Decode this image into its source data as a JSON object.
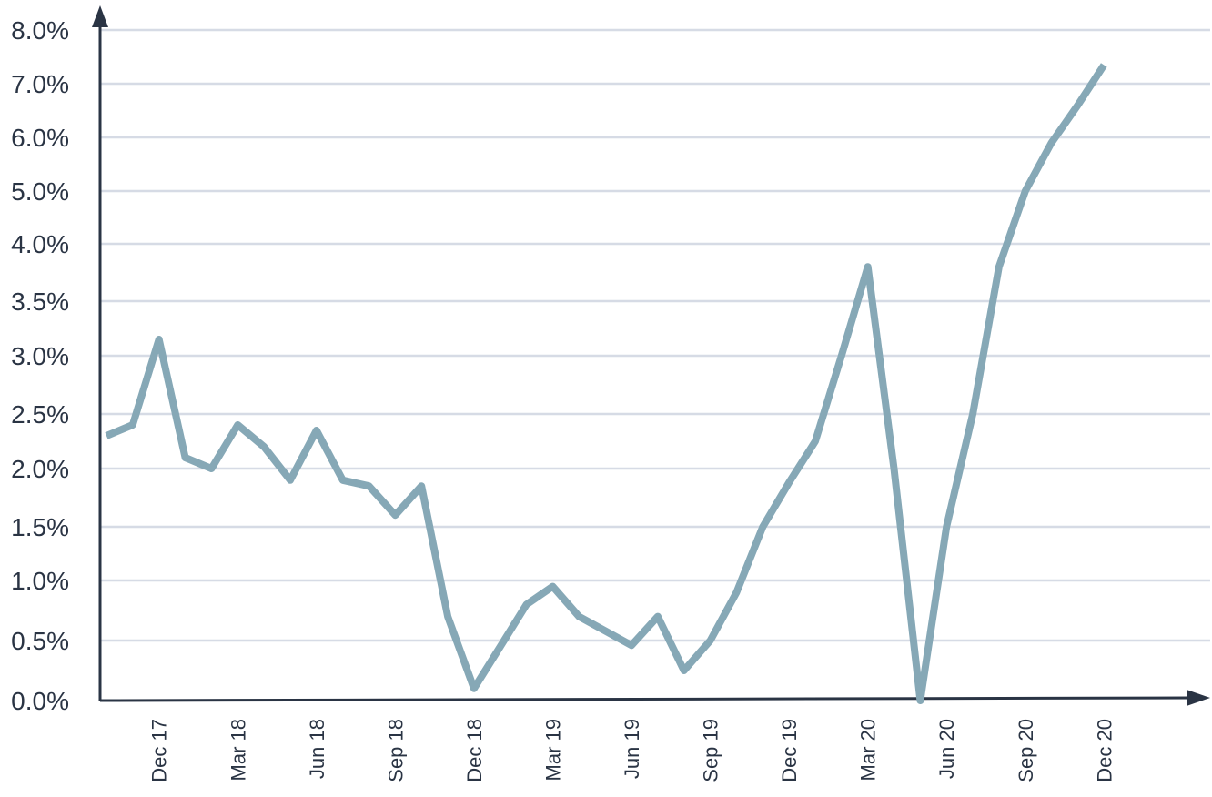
{
  "chart_data": {
    "type": "line",
    "title": "",
    "xlabel": "",
    "ylabel": "",
    "y_tick_labels": [
      "0.0%",
      "0.5%",
      "1.0%",
      "1.5%",
      "2.0%",
      "2.5%",
      "3.0%",
      "3.5%",
      "4.0%",
      "5.0%",
      "6.0%",
      "7.0%",
      "8.0%"
    ],
    "y_tick_values": [
      0.0,
      0.5,
      1.0,
      1.5,
      2.0,
      2.5,
      3.0,
      3.5,
      4.0,
      5.0,
      6.0,
      7.0,
      8.0
    ],
    "x_tick_labels": [
      "Dec 17",
      "Mar 18",
      "Jun 18",
      "Sep 18",
      "Dec 18",
      "Mar 19",
      "Jun 19",
      "Sep 19",
      "Dec 19",
      "Mar 20",
      "Jun 20",
      "Sep 20",
      "Dec 20"
    ],
    "x_tick_index": [
      2,
      5,
      8,
      11,
      14,
      17,
      20,
      23,
      26,
      29,
      32,
      35,
      38
    ],
    "grid": true,
    "series": [
      {
        "values": [
          2.3,
          2.4,
          3.15,
          2.1,
          2.0,
          2.4,
          2.2,
          1.9,
          2.35,
          1.9,
          1.85,
          1.6,
          1.85,
          0.7,
          0.1,
          0.45,
          0.8,
          0.95,
          0.7,
          0.58,
          0.46,
          0.7,
          0.25,
          0.5,
          0.9,
          1.5,
          1.88,
          2.25,
          3.0,
          3.8,
          2.0,
          0.0,
          1.5,
          2.5,
          3.8,
          5.0,
          5.9,
          6.6,
          7.35
        ],
        "color": "#86a8b6"
      }
    ],
    "colors": {
      "line": "#86a8b6",
      "axis": "#2a3444",
      "grid": "#d6dbe5",
      "text": "#2a3444"
    }
  }
}
